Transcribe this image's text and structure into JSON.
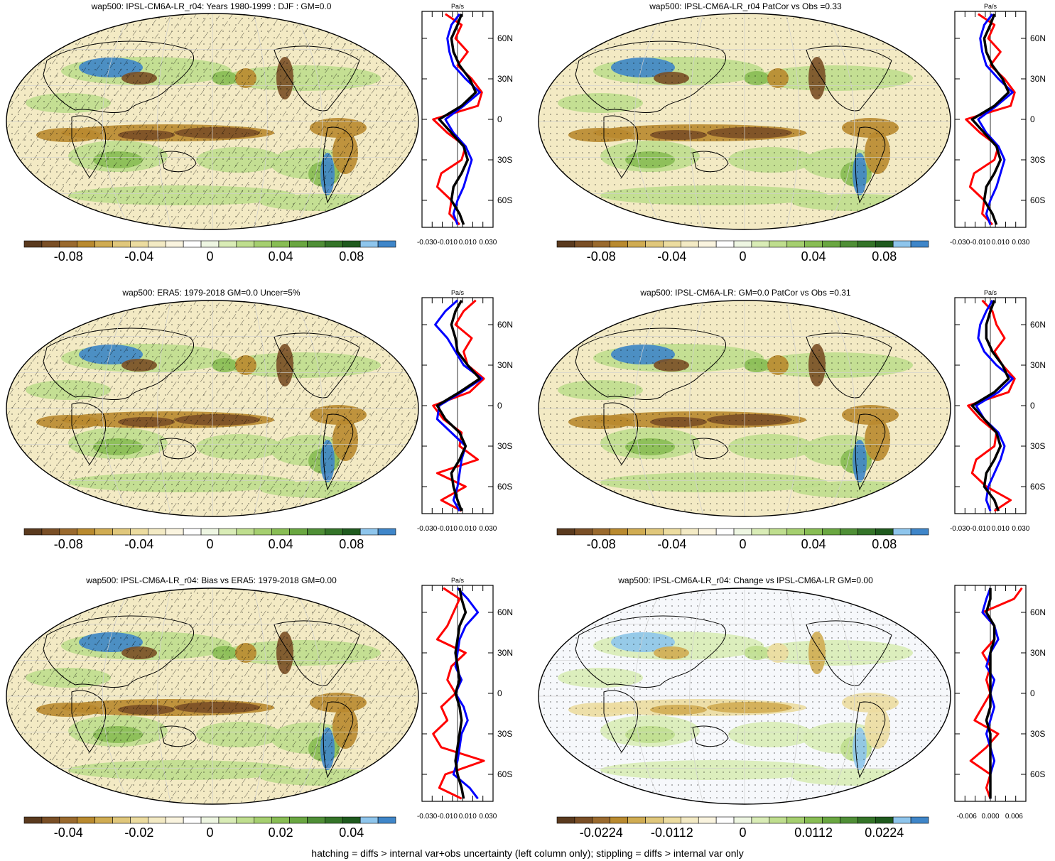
{
  "footer": "hatching = diffs > internal var+obs uncertainty (left column only); stippling = diffs > internal var only",
  "colors": {
    "scale": [
      "#5a3a1e",
      "#7a4f26",
      "#9a6a2e",
      "#b98a2f",
      "#d0ac52",
      "#e0c77b",
      "#ecdca0",
      "#f3eac4",
      "#faf4df",
      "#ffffff",
      "#eef6e2",
      "#d9ecb6",
      "#bfde8e",
      "#a5cf6f",
      "#88bd54",
      "#6aa741",
      "#4f8f36",
      "#347428",
      "#1f5a1e",
      "#8ec5ec",
      "#3f86c9"
    ],
    "model": "#0000ff",
    "obs": "#ff0000",
    "mean": "#000000"
  },
  "panels": [
    {
      "id": "model-djf",
      "title": "wap500: IPSL-CM6A-LR_r04: Years 1980-1999 : DJF : GM=0.0",
      "colorbar_labels": [
        "-0.08",
        "-0.04",
        "0",
        "0.04",
        "0.08"
      ],
      "hatched": true,
      "chart_data": {
        "type": "line",
        "xlabel": "Pa/s",
        "xticks": [
          "-0.030",
          "-0.010",
          "0.010",
          "0.030"
        ],
        "xlim": [
          -0.035,
          0.035
        ],
        "yticks": [
          "60N",
          "30N",
          "0",
          "30S",
          "60S"
        ],
        "ylim": [
          -80,
          80
        ],
        "series": [
          {
            "key": "model",
            "y": [
              78,
              70,
              60,
              50,
              40,
              30,
              20,
              10,
              0,
              -10,
              -20,
              -30,
              -40,
              -50,
              -60,
              -70,
              -78
            ],
            "x": [
              0.002,
              -0.006,
              -0.01,
              -0.008,
              -0.004,
              0.008,
              0.022,
              0.006,
              -0.012,
              -0.004,
              0.008,
              0.014,
              0.01,
              0.006,
              0.0,
              -0.004,
              0.0
            ]
          },
          {
            "key": "obs",
            "y": [
              78,
              70,
              60,
              50,
              40,
              30,
              20,
              10,
              0,
              -10,
              -20,
              -30,
              -40,
              -50,
              -60,
              -70,
              -78
            ],
            "x": [
              -0.012,
              0.004,
              -0.002,
              0.01,
              0.0,
              0.014,
              0.024,
              0.02,
              -0.024,
              -0.01,
              0.008,
              0.004,
              -0.016,
              -0.02,
              -0.006,
              -0.008,
              0.002
            ]
          },
          {
            "key": "mean",
            "y": [
              78,
              70,
              60,
              50,
              40,
              30,
              20,
              10,
              0,
              -10,
              -20,
              -30,
              -40,
              -50,
              -60,
              -70,
              -78
            ],
            "x": [
              0.004,
              0.0,
              -0.006,
              -0.004,
              0.002,
              0.012,
              0.018,
              0.004,
              -0.018,
              -0.006,
              0.006,
              0.01,
              0.004,
              -0.004,
              -0.006,
              0.002,
              0.006
            ]
          }
        ]
      }
    },
    {
      "id": "model-patcor",
      "title": "wap500: IPSL-CM6A-LR_r04 PatCor vs Obs =0.33",
      "colorbar_labels": [
        "-0.08",
        "-0.04",
        "0",
        "0.04",
        "0.08"
      ],
      "hatched": false,
      "chart_data": {
        "type": "line",
        "xlabel": "Pa/s",
        "xticks": [
          "-0.030",
          "-0.010",
          "0.010",
          "0.030"
        ],
        "xlim": [
          -0.035,
          0.035
        ],
        "yticks": [
          "60N",
          "30N",
          "0",
          "30S",
          "60S"
        ],
        "ylim": [
          -80,
          80
        ],
        "series": [
          {
            "key": "model",
            "y": [
              78,
              70,
              60,
              50,
              40,
              30,
              20,
              10,
              0,
              -10,
              -20,
              -30,
              -40,
              -50,
              -60,
              -70,
              -78
            ],
            "x": [
              0.002,
              -0.006,
              -0.01,
              -0.008,
              -0.004,
              0.008,
              0.022,
              0.006,
              -0.012,
              -0.004,
              0.008,
              0.014,
              0.01,
              0.006,
              0.0,
              -0.004,
              0.0
            ]
          },
          {
            "key": "obs",
            "y": [
              78,
              70,
              60,
              50,
              40,
              30,
              20,
              10,
              0,
              -10,
              -20,
              -30,
              -40,
              -50,
              -60,
              -70,
              -78
            ],
            "x": [
              -0.012,
              0.004,
              -0.002,
              0.01,
              0.0,
              0.014,
              0.024,
              0.02,
              -0.024,
              -0.01,
              0.008,
              0.004,
              -0.016,
              -0.02,
              -0.006,
              -0.008,
              0.002
            ]
          },
          {
            "key": "mean",
            "y": [
              78,
              70,
              60,
              50,
              40,
              30,
              20,
              10,
              0,
              -10,
              -20,
              -30,
              -40,
              -50,
              -60,
              -70,
              -78
            ],
            "x": [
              0.004,
              0.0,
              -0.006,
              -0.004,
              0.002,
              0.012,
              0.018,
              0.004,
              -0.018,
              -0.006,
              0.006,
              0.01,
              0.004,
              -0.004,
              -0.006,
              0.002,
              0.006
            ]
          }
        ]
      }
    },
    {
      "id": "era5",
      "title": "wap500: ERA5: 1979-2018 GM=0.0 Uncer=5%",
      "colorbar_labels": [
        "-0.08",
        "-0.04",
        "0",
        "0.04",
        "0.08"
      ],
      "hatched": true,
      "chart_data": {
        "type": "line",
        "xlabel": "Pa/s",
        "xticks": [
          "-0.030",
          "-0.010",
          "0.010",
          "0.030"
        ],
        "xlim": [
          -0.035,
          0.035
        ],
        "yticks": [
          "60N",
          "30N",
          "0",
          "30S",
          "60S"
        ],
        "ylim": [
          -80,
          80
        ],
        "series": [
          {
            "key": "model",
            "y": [
              78,
              70,
              60,
              50,
              40,
              30,
              20,
              10,
              0,
              -10,
              -20,
              -30,
              -40,
              -50,
              -60,
              -70,
              -78
            ],
            "x": [
              0.0,
              -0.012,
              -0.022,
              -0.01,
              -0.002,
              0.006,
              0.024,
              0.004,
              -0.018,
              -0.02,
              -0.006,
              0.008,
              0.004,
              0.002,
              0.0,
              -0.004,
              0.002
            ]
          },
          {
            "key": "obs",
            "y": [
              78,
              70,
              60,
              50,
              40,
              30,
              20,
              10,
              0,
              -10,
              -20,
              -30,
              -40,
              -50,
              -60,
              -70,
              -78
            ],
            "x": [
              0.018,
              0.006,
              -0.002,
              0.014,
              0.006,
              0.01,
              0.026,
              0.012,
              -0.024,
              -0.014,
              0.004,
              0.002,
              0.02,
              -0.02,
              0.008,
              -0.016,
              0.004
            ]
          },
          {
            "key": "mean",
            "y": [
              78,
              70,
              60,
              50,
              40,
              30,
              20,
              10,
              0,
              -10,
              -20,
              -30,
              -40,
              -50,
              -60,
              -70,
              -78
            ],
            "x": [
              0.004,
              -0.002,
              -0.006,
              -0.002,
              0.0,
              0.01,
              0.022,
              0.002,
              -0.02,
              -0.012,
              0.002,
              0.008,
              0.002,
              -0.006,
              -0.004,
              0.0,
              0.004
            ]
          }
        ]
      }
    },
    {
      "id": "model-clim",
      "title": "wap500: IPSL-CM6A-LR: GM=0.0 PatCor vs Obs =0.31",
      "colorbar_labels": [
        "-0.08",
        "-0.04",
        "0",
        "0.04",
        "0.08"
      ],
      "hatched": false,
      "chart_data": {
        "type": "line",
        "xlabel": "Pa/s",
        "xticks": [
          "-0.030",
          "-0.010",
          "0.010",
          "0.030"
        ],
        "xlim": [
          -0.035,
          0.035
        ],
        "yticks": [
          "60N",
          "30N",
          "0",
          "30S",
          "60S"
        ],
        "ylim": [
          -80,
          80
        ],
        "series": [
          {
            "key": "model",
            "y": [
              78,
              70,
              60,
              50,
              40,
              30,
              20,
              10,
              0,
              -10,
              -20,
              -30,
              -40,
              -50,
              -60,
              -70,
              -78
            ],
            "x": [
              0.002,
              -0.004,
              -0.01,
              -0.012,
              -0.006,
              0.006,
              0.022,
              0.008,
              -0.014,
              -0.006,
              0.008,
              0.014,
              0.01,
              0.004,
              -0.002,
              -0.004,
              0.0
            ]
          },
          {
            "key": "obs",
            "y": [
              78,
              70,
              60,
              50,
              40,
              30,
              20,
              10,
              0,
              -10,
              -20,
              -30,
              -40,
              -50,
              -60,
              -70,
              -78
            ],
            "x": [
              -0.008,
              0.002,
              0.006,
              0.014,
              0.004,
              0.012,
              0.024,
              0.018,
              -0.022,
              -0.01,
              0.006,
              0.004,
              -0.014,
              -0.018,
              -0.004,
              0.02,
              0.004
            ]
          },
          {
            "key": "mean",
            "y": [
              78,
              70,
              60,
              50,
              40,
              30,
              20,
              10,
              0,
              -10,
              -20,
              -30,
              -40,
              -50,
              -60,
              -70,
              -78
            ],
            "x": [
              0.004,
              0.0,
              -0.004,
              -0.004,
              0.002,
              0.012,
              0.018,
              0.004,
              -0.018,
              -0.006,
              0.006,
              0.01,
              0.004,
              -0.004,
              -0.006,
              0.004,
              0.008
            ]
          }
        ]
      }
    },
    {
      "id": "bias",
      "title": "wap500: IPSL-CM6A-LR_r04: Bias vs ERA5: 1979-2018 GM=0.00",
      "colorbar_labels": [
        "-0.04",
        "-0.02",
        "0",
        "0.02",
        "0.04"
      ],
      "hatched": true,
      "chart_data": {
        "type": "line",
        "xlabel": "Pa/s",
        "xticks": [
          "-0.030",
          "-0.010",
          "0.010",
          "0.030"
        ],
        "xlim": [
          -0.035,
          0.035
        ],
        "yticks": [
          "60N",
          "30N",
          "0",
          "30S",
          "60S"
        ],
        "ylim": [
          -80,
          80
        ],
        "series": [
          {
            "key": "model",
            "y": [
              78,
              70,
              60,
              50,
              40,
              30,
              20,
              10,
              0,
              -10,
              -20,
              -30,
              -40,
              -50,
              -60,
              -70,
              -78
            ],
            "x": [
              0.0,
              0.01,
              0.02,
              0.008,
              0.002,
              0.0,
              -0.002,
              0.004,
              -0.002,
              0.006,
              0.01,
              0.004,
              0.002,
              0.0,
              -0.004,
              0.012,
              0.02
            ]
          },
          {
            "key": "obs",
            "y": [
              78,
              70,
              60,
              50,
              40,
              30,
              20,
              10,
              0,
              -10,
              -20,
              -30,
              -40,
              -50,
              -60,
              -70,
              -78
            ],
            "x": [
              -0.014,
              0.002,
              -0.004,
              -0.01,
              -0.02,
              0.008,
              -0.006,
              -0.01,
              -0.002,
              -0.016,
              -0.01,
              -0.024,
              -0.016,
              0.026,
              -0.012,
              -0.018,
              0.004
            ]
          },
          {
            "key": "mean",
            "y": [
              78,
              70,
              60,
              50,
              40,
              30,
              20,
              10,
              0,
              -10,
              -20,
              -30,
              -40,
              -50,
              -60,
              -70,
              -78
            ],
            "x": [
              0.002,
              0.004,
              0.008,
              0.002,
              0.0,
              -0.002,
              0.0,
              0.002,
              -0.002,
              0.002,
              0.004,
              0.002,
              0.0,
              -0.002,
              0.0,
              0.004,
              0.006
            ]
          }
        ]
      }
    },
    {
      "id": "change",
      "title": "wap500: IPSL-CM6A-LR_r04: Change vs IPSL-CM6A-LR GM=0.00",
      "colorbar_labels": [
        "-0.0224",
        "-0.0112",
        "0",
        "0.0112",
        "0.0224"
      ],
      "hatched": false,
      "chart_data": {
        "type": "line",
        "xlabel": "",
        "xticks": [
          "-0.006",
          "0.000",
          "0.006"
        ],
        "xlim": [
          -0.009,
          0.009
        ],
        "yticks": [
          "60N",
          "30N",
          "0",
          "30S",
          "60S"
        ],
        "ylim": [
          -80,
          80
        ],
        "series": [
          {
            "key": "model",
            "y": [
              78,
              70,
              60,
              50,
              40,
              30,
              20,
              10,
              0,
              -10,
              -20,
              -30,
              -40,
              -50,
              -60,
              -70,
              -78
            ],
            "x": [
              0.0,
              -0.001,
              -0.002,
              0.001,
              0.002,
              0.0,
              -0.001,
              0.001,
              0.0,
              0.001,
              0.0,
              -0.001,
              0.0,
              0.001,
              0.0,
              0.0,
              0.0
            ]
          },
          {
            "key": "obs",
            "y": [
              78,
              70,
              60,
              50,
              40,
              30,
              20,
              10,
              0,
              -10,
              -20,
              -30,
              -40,
              -50,
              -60,
              -70,
              -78
            ],
            "x": [
              0.008,
              0.006,
              -0.002,
              0.001,
              0.001,
              -0.002,
              0.0,
              -0.001,
              0.0,
              -0.002,
              -0.004,
              0.002,
              -0.001,
              -0.005,
              0.0,
              -0.001,
              0.0
            ]
          },
          {
            "key": "mean",
            "y": [
              78,
              70,
              60,
              50,
              40,
              30,
              20,
              10,
              0,
              -10,
              -20,
              -30,
              -40,
              -50,
              -60,
              -70,
              -78
            ],
            "x": [
              0.0,
              0.0,
              -0.001,
              0.001,
              0.001,
              0.0,
              0.0,
              0.0,
              0.0,
              0.0,
              -0.001,
              0.0,
              0.0,
              0.0,
              0.0,
              0.0,
              0.0
            ]
          }
        ]
      }
    }
  ]
}
